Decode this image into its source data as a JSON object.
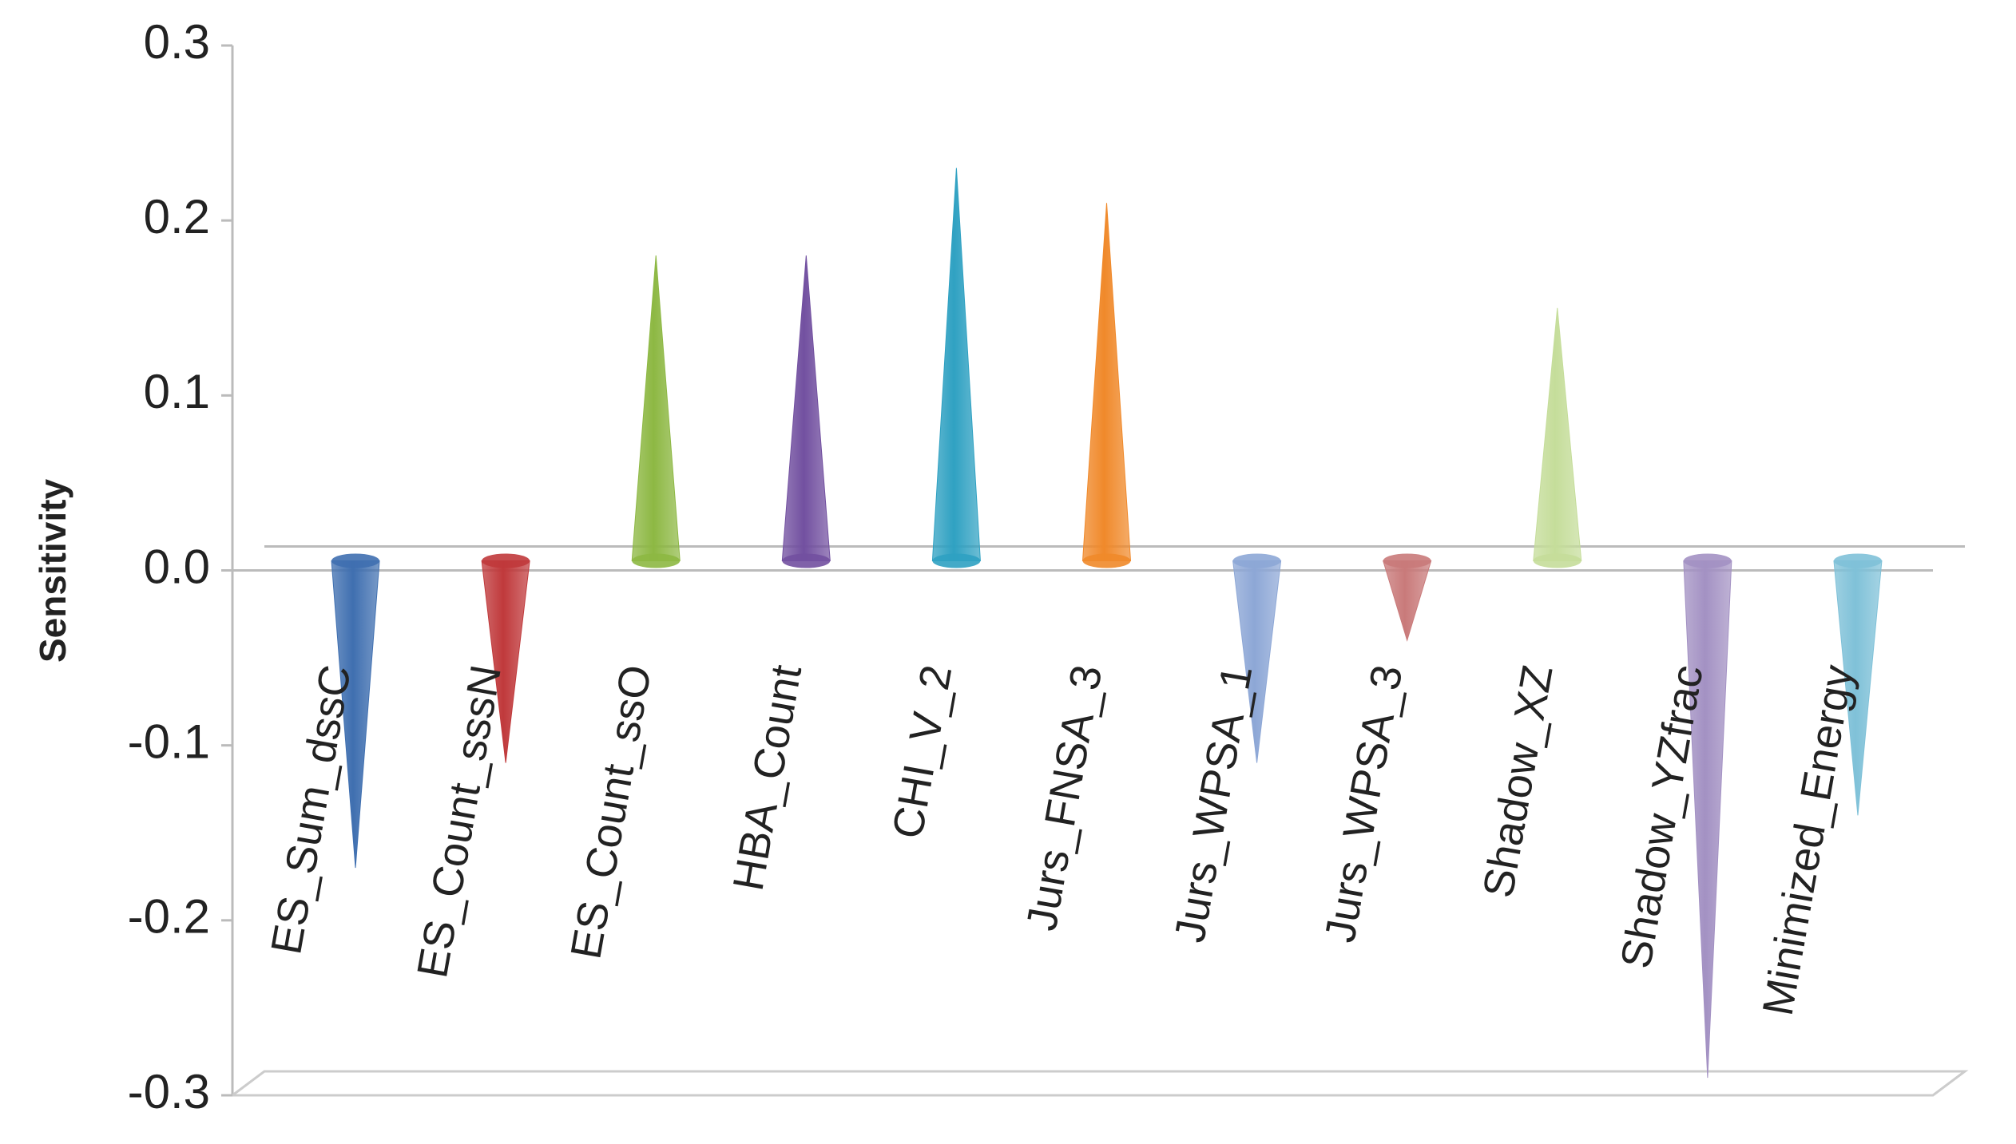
{
  "chart_data": {
    "type": "cone",
    "y_label": "Sensitivity",
    "categories": [
      "ES_Sum_dssC",
      "ES_Count_sssN",
      "ES_Count_ssO",
      "HBA_Count",
      "CHI_V_2",
      "Jurs_FNSA_3",
      "Jurs_WPSA_1",
      "Jurs_WPSA_3",
      "Shadow_XZ",
      "Shadow_YZfrac",
      "Minimized_Energy"
    ],
    "values": [
      -0.17,
      -0.11,
      0.18,
      0.18,
      0.23,
      0.21,
      -0.11,
      -0.04,
      0.15,
      -0.29,
      -0.14
    ],
    "colors": [
      "#3f6fb0",
      "#c0393b",
      "#8db843",
      "#7250a0",
      "#2fa1c2",
      "#f0892a",
      "#8da7d6",
      "#c97a7a",
      "#c5dd9a",
      "#a391c3",
      "#7fc1d8"
    ],
    "ylim": [
      -0.3,
      0.3
    ],
    "yticks": [
      -0.3,
      -0.2,
      -0.1,
      {
        "value": 0,
        "label": "0.0"
      },
      0.1,
      0.2,
      0.3
    ]
  }
}
